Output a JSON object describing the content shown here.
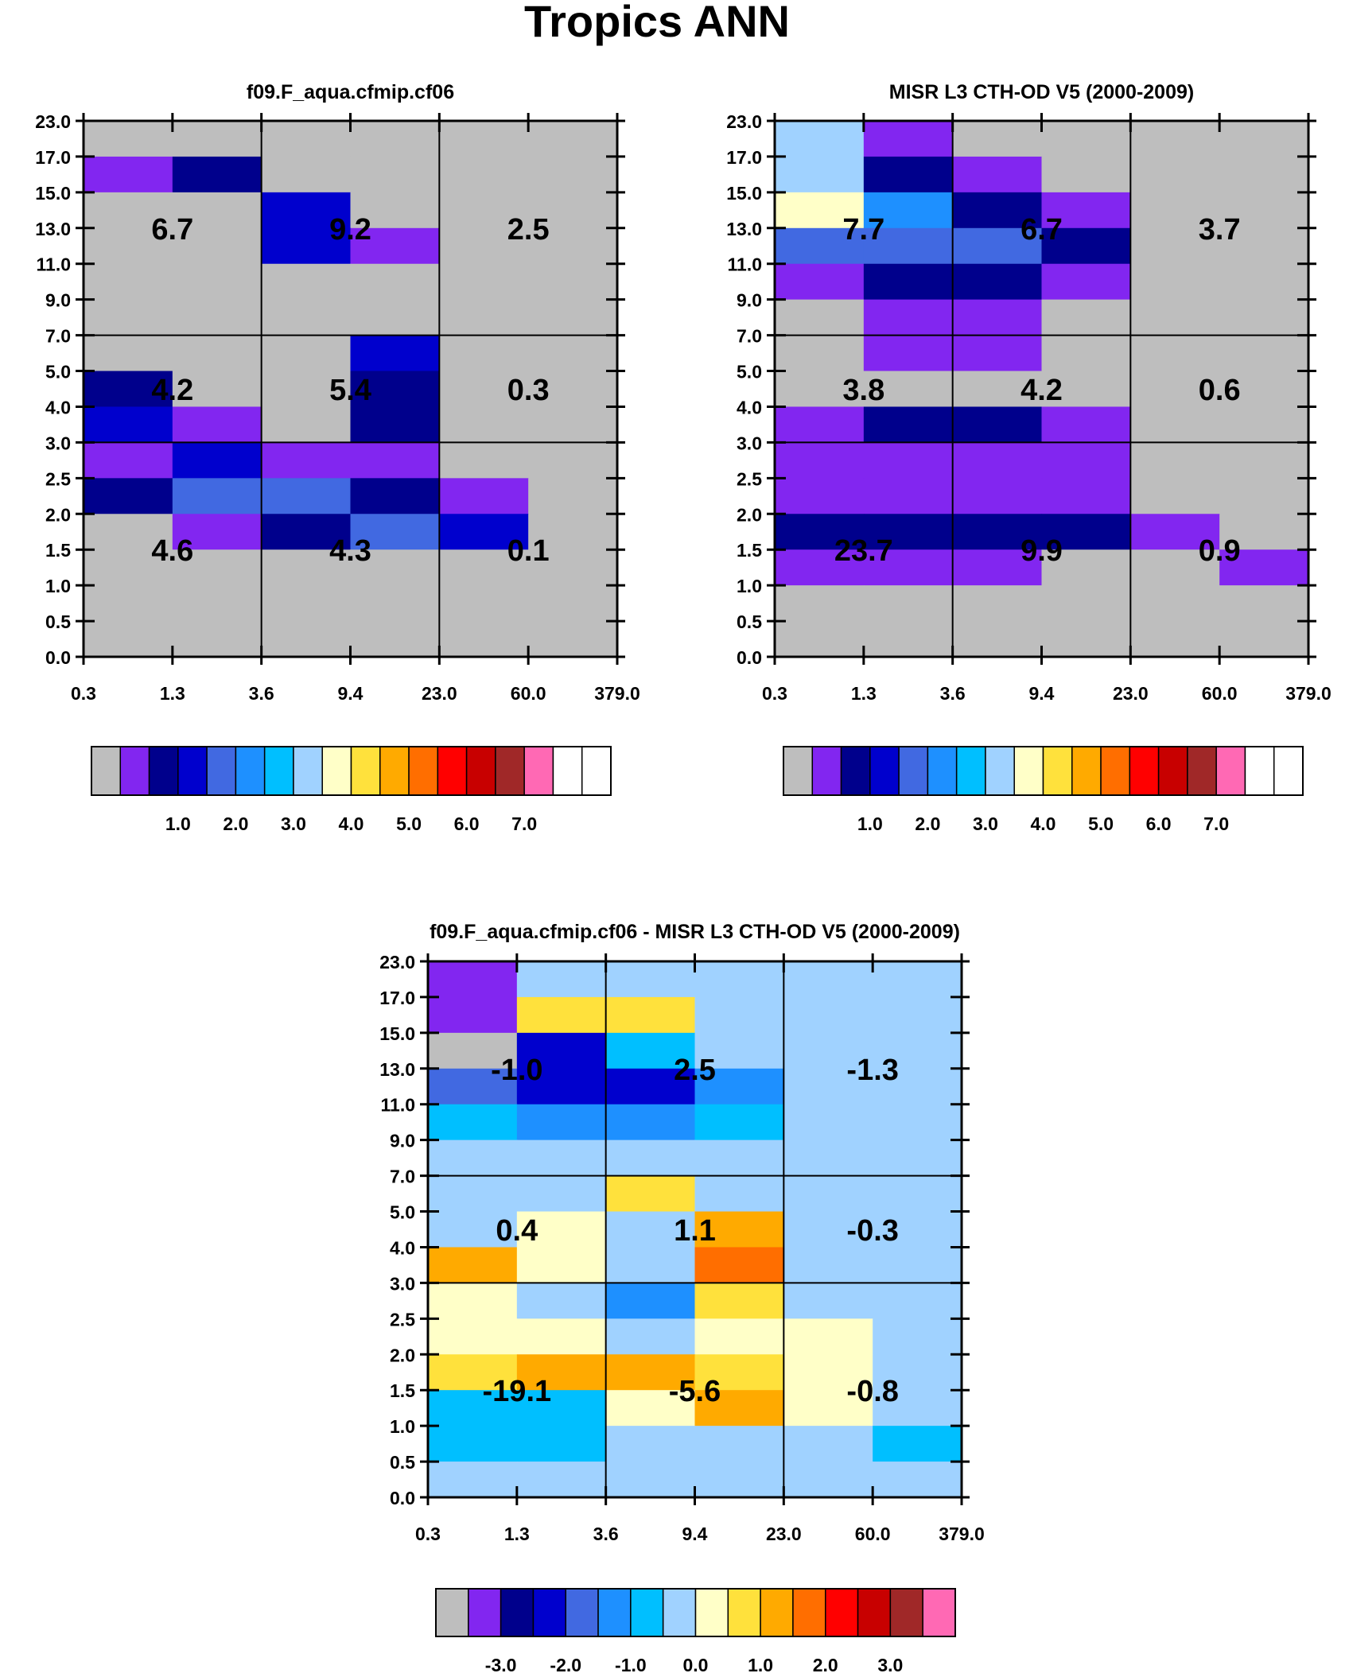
{
  "page_title": "Tropics ANN",
  "chart_data": [
    {
      "id": "model",
      "type": "heatmap",
      "title": "f09.F_aqua.cfmip.cf06",
      "x_ticks": [
        "0.3",
        "1.3",
        "3.6",
        "9.4",
        "23.0",
        "60.0",
        "379.0"
      ],
      "y_ticks": [
        "0.0",
        "0.5",
        "1.0",
        "1.5",
        "2.0",
        "2.5",
        "3.0",
        "4.0",
        "5.0",
        "7.0",
        "9.0",
        "11.0",
        "13.0",
        "15.0",
        "17.0",
        "23.0"
      ],
      "x_groups": [
        2,
        4
      ],
      "y_groups": [
        6,
        9
      ],
      "cells": [
        [
          0,
          0,
          0,
          0,
          0,
          0
        ],
        [
          1,
          2,
          0,
          0,
          0,
          0
        ],
        [
          0,
          0,
          3,
          0,
          0,
          0
        ],
        [
          0,
          0,
          3,
          1,
          0,
          0
        ],
        [
          0,
          0,
          0,
          0,
          0,
          0
        ],
        [
          0,
          0,
          0,
          0,
          0,
          0
        ],
        [
          0,
          0,
          0,
          3,
          0,
          0
        ],
        [
          2,
          0,
          0,
          2,
          0,
          0
        ],
        [
          3,
          1,
          0,
          2,
          0,
          0
        ],
        [
          1,
          3,
          1,
          1,
          0,
          0
        ],
        [
          2,
          4,
          4,
          2,
          1,
          0
        ],
        [
          0,
          1,
          2,
          4,
          3,
          0
        ],
        [
          0,
          0,
          0,
          0,
          0,
          0
        ],
        [
          0,
          0,
          0,
          0,
          0,
          0
        ],
        [
          0,
          0,
          0,
          0,
          0,
          0
        ]
      ],
      "group_labels": [
        [
          "4.6",
          "4.3",
          "0.1"
        ],
        [
          "4.2",
          "5.4",
          "0.3"
        ],
        [
          "6.7",
          "9.2",
          "2.5"
        ]
      ],
      "colorbar_ticks": [
        "1.0",
        "2.0",
        "3.0",
        "4.0",
        "5.0",
        "6.0",
        "7.0"
      ]
    },
    {
      "id": "obs",
      "type": "heatmap",
      "title": "MISR L3 CTH-OD V5 (2000-2009)",
      "x_ticks": [
        "0.3",
        "1.3",
        "3.6",
        "9.4",
        "23.0",
        "60.0",
        "379.0"
      ],
      "y_ticks": [
        "0.0",
        "0.5",
        "1.0",
        "1.5",
        "2.0",
        "2.5",
        "3.0",
        "4.0",
        "5.0",
        "7.0",
        "9.0",
        "11.0",
        "13.0",
        "15.0",
        "17.0",
        "23.0"
      ],
      "x_groups": [
        2,
        4
      ],
      "y_groups": [
        6,
        9
      ],
      "cells": [
        [
          7,
          1,
          0,
          0,
          0,
          0
        ],
        [
          7,
          2,
          1,
          0,
          0,
          0
        ],
        [
          8,
          5,
          2,
          1,
          0,
          0
        ],
        [
          4,
          4,
          4,
          2,
          0,
          0
        ],
        [
          1,
          2,
          2,
          1,
          0,
          0
        ],
        [
          0,
          1,
          1,
          0,
          0,
          0
        ],
        [
          0,
          1,
          1,
          0,
          0,
          0
        ],
        [
          0,
          0,
          0,
          0,
          0,
          0
        ],
        [
          1,
          2,
          2,
          1,
          0,
          0
        ],
        [
          1,
          1,
          1,
          1,
          0,
          0
        ],
        [
          1,
          1,
          1,
          1,
          0,
          0
        ],
        [
          2,
          2,
          2,
          2,
          1,
          0
        ],
        [
          1,
          1,
          1,
          0,
          0,
          1
        ],
        [
          0,
          0,
          0,
          0,
          0,
          0
        ],
        [
          0,
          0,
          0,
          0,
          0,
          0
        ]
      ],
      "group_labels": [
        [
          "23.7",
          "9.9",
          "0.9"
        ],
        [
          "3.8",
          "4.2",
          "0.6"
        ],
        [
          "7.7",
          "6.7",
          "3.7"
        ]
      ],
      "colorbar_ticks": [
        "1.0",
        "2.0",
        "3.0",
        "4.0",
        "5.0",
        "6.0",
        "7.0"
      ]
    },
    {
      "id": "diff",
      "type": "heatmap",
      "title": "f09.F_aqua.cfmip.cf06 - MISR L3 CTH-OD V5 (2000-2009)",
      "x_ticks": [
        "0.3",
        "1.3",
        "3.6",
        "9.4",
        "23.0",
        "60.0",
        "379.0"
      ],
      "y_ticks": [
        "0.0",
        "0.5",
        "1.0",
        "1.5",
        "2.0",
        "2.5",
        "3.0",
        "4.0",
        "5.0",
        "7.0",
        "9.0",
        "11.0",
        "13.0",
        "15.0",
        "17.0",
        "23.0"
      ],
      "x_groups": [
        2,
        4
      ],
      "y_groups": [
        6,
        9
      ],
      "cells": [
        [
          1,
          7,
          7,
          7,
          7,
          7
        ],
        [
          1,
          9,
          9,
          7,
          7,
          7
        ],
        [
          0,
          3,
          6,
          7,
          7,
          7
        ],
        [
          4,
          3,
          3,
          5,
          7,
          7
        ],
        [
          6,
          5,
          5,
          6,
          7,
          7
        ],
        [
          7,
          7,
          7,
          7,
          7,
          7
        ],
        [
          7,
          7,
          9,
          7,
          7,
          7
        ],
        [
          7,
          8,
          7,
          10,
          7,
          7
        ],
        [
          10,
          8,
          7,
          11,
          7,
          7
        ],
        [
          8,
          7,
          5,
          9,
          7,
          7
        ],
        [
          8,
          8,
          7,
          8,
          8,
          7
        ],
        [
          9,
          10,
          10,
          9,
          8,
          7
        ],
        [
          6,
          6,
          8,
          10,
          8,
          7
        ],
        [
          6,
          6,
          7,
          7,
          7,
          6
        ],
        [
          7,
          7,
          7,
          7,
          7,
          7
        ]
      ],
      "group_labels": [
        [
          "-19.1",
          "-5.6",
          "-0.8"
        ],
        [
          "0.4",
          "1.1",
          "-0.3"
        ],
        [
          "-1.0",
          "2.5",
          "-1.3"
        ]
      ],
      "colorbar_ticks": [
        "-3.0",
        "-2.0",
        "-1.0",
        "0.0",
        "1.0",
        "2.0",
        "3.0"
      ]
    }
  ],
  "palette": [
    "#BEBEBE",
    "#8226F0",
    "#00008C",
    "#0000CD",
    "#4169E1",
    "#1E90FF",
    "#00BFFF",
    "#A0D2FF",
    "#FFFFC8",
    "#FFE13C",
    "#FFAA00",
    "#FF6E00",
    "#FF0000",
    "#C80000",
    "#A02828",
    "#FF69B4"
  ]
}
